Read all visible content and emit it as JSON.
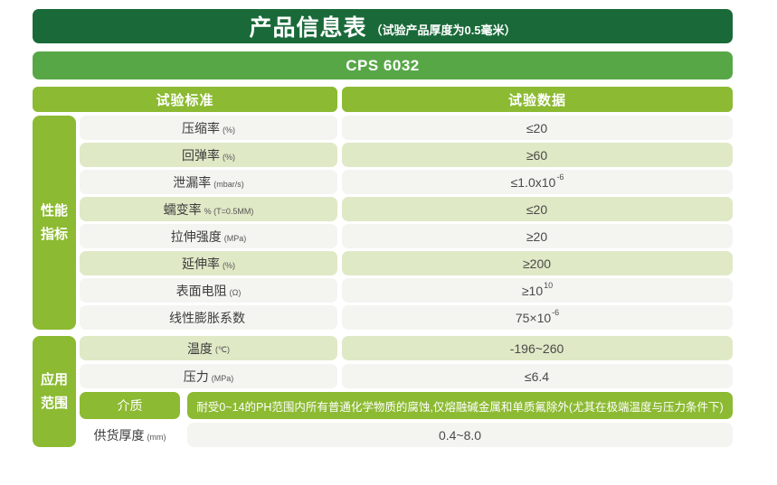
{
  "header": {
    "title": "产品信息表",
    "subtitle": "（试验产品厚度为0.5毫米）"
  },
  "product": {
    "name": "CPS 6032"
  },
  "table": {
    "col_standard": "试验标准",
    "col_data": "试验数据",
    "sections": {
      "performance": {
        "line1": "性能",
        "line2": "指标"
      },
      "application": {
        "line1": "应用",
        "line2": "范围"
      }
    },
    "rows": [
      {
        "label": "压缩率",
        "unit": "(%)",
        "value": "≤20",
        "sup": ""
      },
      {
        "label": "回弹率",
        "unit": "(%)",
        "value": "≥60",
        "sup": ""
      },
      {
        "label": "泄漏率",
        "unit": "(mbar/s)",
        "value": "≤1.0x10",
        "sup": "-6"
      },
      {
        "label": "蠕变率",
        "unit": "% (T=0.5MM)",
        "value": "≤20",
        "sup": ""
      },
      {
        "label": "拉伸强度",
        "unit": "(MPa)",
        "value": "≥20",
        "sup": ""
      },
      {
        "label": "延伸率",
        "unit": "(%)",
        "value": "≥200",
        "sup": ""
      },
      {
        "label": "表面电阻",
        "unit": "(Ω)",
        "value": "≥10",
        "sup": "10"
      },
      {
        "label": "线性膨胀系数",
        "unit": "",
        "value": "75×10",
        "sup": "-6"
      },
      {
        "label": "温度",
        "unit": "(℃)",
        "value": "-196~260",
        "sup": ""
      },
      {
        "label": "压力",
        "unit": "(MPa)",
        "value": "≤6.4",
        "sup": ""
      },
      {
        "label": "介质",
        "unit": "",
        "value": "耐受0~14的PH范围内所有普通化学物质的腐蚀,仅熔融碱金属和单质氟除外(尤其在极端温度与压力条件下)",
        "sup": ""
      },
      {
        "label": "供货厚度",
        "unit": "(mm)",
        "value": "0.4~8.0",
        "sup": ""
      }
    ]
  },
  "colors": {
    "banner_dark_green": "#1a6a39",
    "banner_medium_green": "#58a747",
    "accent_yellow_green": "#8cba32",
    "row_light_green": "#dfe9c6",
    "row_light_gray": "#f4f5f1"
  }
}
